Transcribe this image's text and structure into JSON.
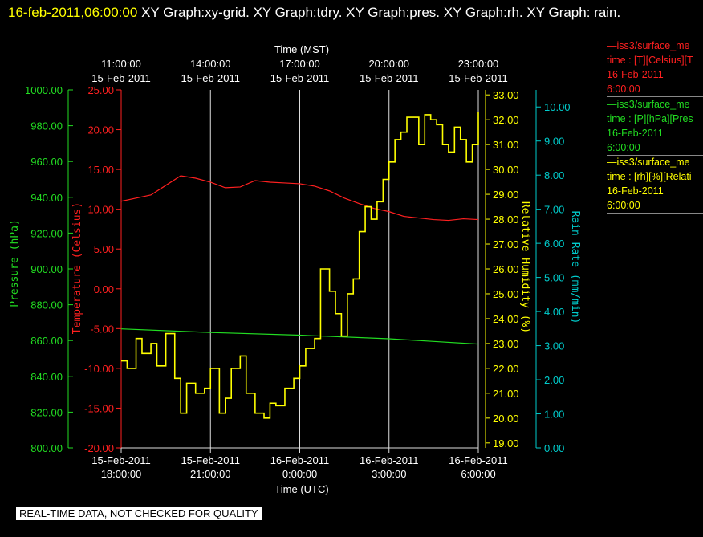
{
  "header": {
    "timestamp": "16-feb-2011,06:00:00",
    "title": "XY Graph:xy-grid.  XY Graph:tdry.  XY Graph:pres.  XY Graph:rh.  XY Graph: rain."
  },
  "legend": [
    {
      "label": "—iss3/surface_me",
      "units": "time : [T][Celsius][T",
      "date": "16-Feb-2011",
      "time": "6:00:00",
      "color": "#ff2020"
    },
    {
      "label": "—iss3/surface_me",
      "units": "time : [P][hPa][Pres",
      "date": "16-Feb-2011",
      "time": "6:00:00",
      "color": "#22dd22"
    },
    {
      "label": "—iss3/surface_me",
      "units": "time : [rh][%][Relati",
      "date": "16-Feb-2011",
      "time": "6:00:00",
      "color": "#ffff00"
    }
  ],
  "disclaimer": "REAL-TIME DATA, NOT CHECKED FOR QUALITY",
  "chart_data": {
    "type": "line",
    "top_axis": {
      "label": "Time (MST)",
      "ticks": [
        {
          "time": "11:00:00",
          "date": "15-Feb-2011"
        },
        {
          "time": "14:00:00",
          "date": "15-Feb-2011"
        },
        {
          "time": "17:00:00",
          "date": "15-Feb-2011"
        },
        {
          "time": "20:00:00",
          "date": "15-Feb-2011"
        },
        {
          "time": "23:00:00",
          "date": "15-Feb-2011"
        }
      ]
    },
    "bottom_axis": {
      "label": "Time (UTC)",
      "range_hours": [
        -12,
        0
      ],
      "ticks": [
        {
          "hours": -12,
          "date": "15-Feb-2011",
          "time": "18:00:00"
        },
        {
          "hours": -9,
          "date": "15-Feb-2011",
          "time": "21:00:00"
        },
        {
          "hours": -6,
          "date": "16-Feb-2011",
          "time": "0:00:00"
        },
        {
          "hours": -3,
          "date": "16-Feb-2011",
          "time": "3:00:00"
        },
        {
          "hours": 0,
          "date": "16-Feb-2011",
          "time": "6:00:00"
        }
      ]
    },
    "axes": {
      "pressure": {
        "label": "Pressure (hPa)",
        "range": [
          800,
          1000
        ],
        "ticks": [
          "800.00",
          "820.00",
          "840.00",
          "860.00",
          "880.00",
          "900.00",
          "920.00",
          "940.00",
          "960.00",
          "980.00",
          "1000.00"
        ],
        "color": "#22dd22"
      },
      "temperature": {
        "label": "Temperature (Celsius)",
        "range": [
          -20,
          25
        ],
        "ticks": [
          "-20.00",
          "-15.00",
          "-10.00",
          "-5.00",
          "0.00",
          "5.00",
          "10.00",
          "15.00",
          "20.00",
          "25.00"
        ],
        "color": "#ff2020"
      },
      "humidity": {
        "label": "Relative Humidity (%)",
        "range": [
          18.8,
          33.2
        ],
        "ticks": [
          "19.00",
          "20.00",
          "21.00",
          "22.00",
          "23.00",
          "24.00",
          "25.00",
          "26.00",
          "27.00",
          "28.00",
          "29.00",
          "30.00",
          "31.00",
          "32.00",
          "33.00"
        ],
        "color": "#ffff00"
      },
      "rain": {
        "label": "Rain Rate (mm/min)",
        "range": [
          0,
          10.5
        ],
        "ticks": [
          "0.00",
          "1.00",
          "2.00",
          "3.00",
          "4.00",
          "5.00",
          "6.00",
          "7.00",
          "8.00",
          "9.00",
          "10.00"
        ],
        "color": "#00cccc"
      }
    },
    "series": [
      {
        "name": "iss3/surface_met T",
        "axis": "temperature",
        "color": "#ff2020",
        "x": [
          -12,
          -11.5,
          -11,
          -10.5,
          -10,
          -9.5,
          -9,
          -8.5,
          -8,
          -7.5,
          -7,
          -6.5,
          -6,
          -5.5,
          -5,
          -4.5,
          -4,
          -3.5,
          -3,
          -2.5,
          -2,
          -1.5,
          -1,
          -0.5,
          0
        ],
        "y": [
          11.0,
          11.4,
          11.8,
          13.0,
          14.2,
          13.9,
          13.4,
          12.7,
          12.8,
          13.6,
          13.4,
          13.3,
          13.2,
          12.9,
          12.3,
          11.4,
          10.7,
          10.1,
          9.7,
          9.1,
          8.9,
          8.7,
          8.6,
          8.8,
          8.7
        ]
      },
      {
        "name": "iss3/surface_met P",
        "axis": "pressure",
        "color": "#22dd22",
        "x": [
          -12,
          -9,
          -6,
          -3,
          -1.5,
          0
        ],
        "y": [
          866.5,
          864.5,
          863.0,
          861.0,
          859.5,
          858.0
        ]
      },
      {
        "name": "iss3/surface_met rh",
        "axis": "humidity",
        "color": "#ffff00",
        "x": [
          -12,
          -11.8,
          -11.5,
          -11.3,
          -11.0,
          -10.8,
          -10.5,
          -10.2,
          -10.0,
          -9.8,
          -9.5,
          -9.2,
          -9.0,
          -8.7,
          -8.5,
          -8.3,
          -8.0,
          -7.8,
          -7.5,
          -7.2,
          -7.0,
          -6.8,
          -6.5,
          -6.2,
          -6.0,
          -5.8,
          -5.5,
          -5.3,
          -5.0,
          -4.8,
          -4.6,
          -4.4,
          -4.2,
          -4.0,
          -3.8,
          -3.6,
          -3.4,
          -3.2,
          -3.0,
          -2.8,
          -2.6,
          -2.4,
          -2.2,
          -2.0,
          -1.8,
          -1.6,
          -1.4,
          -1.2,
          -1.0,
          -0.8,
          -0.6,
          -0.4,
          -0.2,
          0.0
        ],
        "y": [
          22.3,
          22.0,
          23.2,
          22.6,
          23.0,
          22.1,
          23.4,
          21.6,
          20.2,
          21.4,
          21.0,
          21.2,
          22.0,
          20.2,
          20.8,
          22.0,
          22.5,
          21.0,
          20.2,
          20.0,
          20.6,
          20.5,
          21.2,
          21.6,
          22.1,
          22.8,
          23.2,
          26.0,
          25.1,
          24.2,
          23.3,
          25.0,
          25.6,
          27.5,
          28.5,
          28.0,
          28.7,
          29.6,
          30.3,
          31.2,
          31.5,
          32.1,
          32.1,
          31.0,
          32.2,
          32.0,
          31.8,
          31.0,
          30.7,
          31.7,
          31.2,
          30.3,
          31.0,
          32.3
        ]
      },
      {
        "name": "Rain Rate",
        "axis": "rain",
        "color": "#00cccc",
        "x": [],
        "y": []
      }
    ]
  }
}
